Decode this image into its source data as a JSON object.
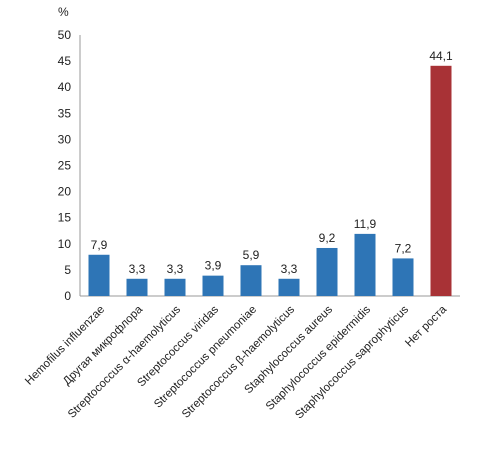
{
  "chart_data": {
    "type": "bar",
    "ylabel": "%",
    "ylim": [
      0,
      50
    ],
    "yticks": [
      0,
      5,
      10,
      15,
      20,
      25,
      30,
      35,
      40,
      45,
      50
    ],
    "categories": [
      "Hemofilus  influenzae",
      "Другая микрофлора",
      "Streptococcus α-haemolyticus",
      "Streptococcus viridas",
      "Streptococcus pneumoniae",
      "Streptococcus β-haemolyticus",
      "Staphylococcus  aureus",
      "Staphylococcus epidermidis",
      "Staphylococcus saprophyticus",
      "Нет роста"
    ],
    "values": [
      7.9,
      3.3,
      3.3,
      3.9,
      5.9,
      3.3,
      9.2,
      11.9,
      7.2,
      44.1
    ],
    "data_labels": [
      "7,9",
      "3,3",
      "3,3",
      "3,9",
      "5,9",
      "3,3",
      "9,2",
      "11,9",
      "7,2",
      "44,1"
    ],
    "colors": [
      "#2e75b6",
      "#2e75b6",
      "#2e75b6",
      "#2e75b6",
      "#2e75b6",
      "#2e75b6",
      "#2e75b6",
      "#2e75b6",
      "#2e75b6",
      "#a83236"
    ],
    "grid": false,
    "legend": "none"
  }
}
